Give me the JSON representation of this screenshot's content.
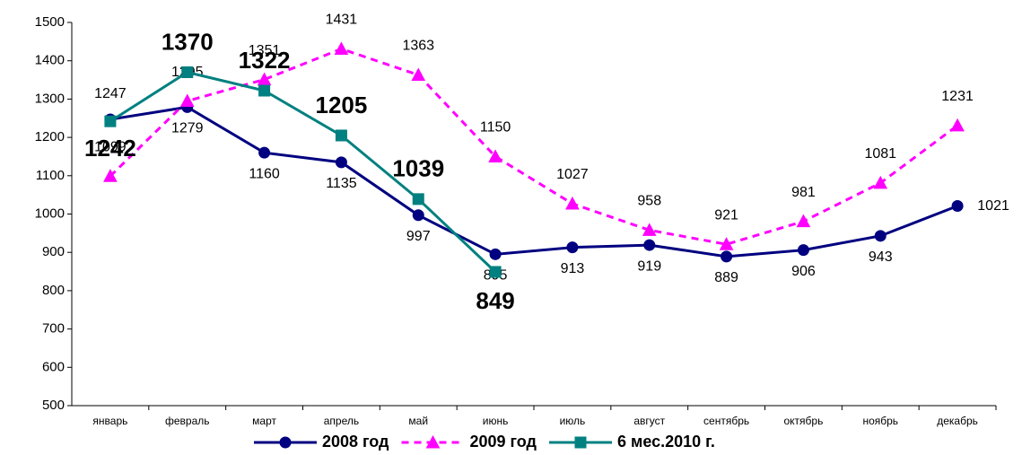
{
  "chart_data": {
    "type": "line",
    "categories": [
      "январь",
      "февраль",
      "март",
      "апрель",
      "май",
      "июнь",
      "июль",
      "август",
      "сентябрь",
      "октябрь",
      "ноябрь",
      "декабрь"
    ],
    "ylim": [
      500,
      1500
    ],
    "yticks": [
      500,
      600,
      700,
      800,
      900,
      1000,
      1100,
      1200,
      1300,
      1400,
      1500
    ],
    "grid": false,
    "series": [
      {
        "name": "2008 год",
        "color": "#000080",
        "marker": "circle",
        "dashed": false,
        "values": [
          1247,
          1279,
          1160,
          1135,
          997,
          895,
          913,
          919,
          889,
          906,
          943,
          1021
        ]
      },
      {
        "name": "2009 год",
        "color": "#ff00ff",
        "marker": "triangle",
        "dashed": true,
        "values": [
          1099,
          1295,
          1351,
          1431,
          1363,
          1150,
          1027,
          958,
          921,
          981,
          1081,
          1231
        ]
      },
      {
        "name": "6 мес.2010 г.",
        "color": "#008080",
        "marker": "square",
        "dashed": false,
        "values": [
          1242,
          1370,
          1322,
          1205,
          1039,
          849,
          null,
          null,
          null,
          null,
          null,
          null
        ]
      }
    ]
  }
}
